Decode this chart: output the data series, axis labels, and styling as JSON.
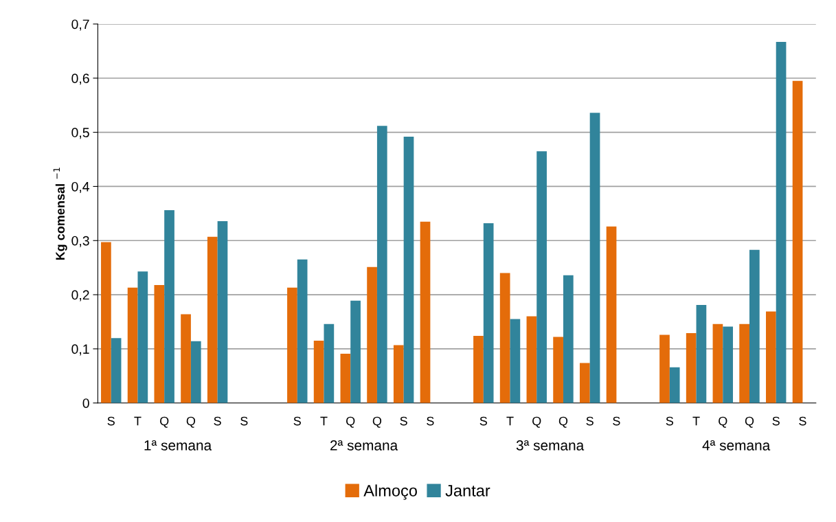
{
  "chart_data": {
    "type": "bar",
    "ylabel": "Kg comensal $^{−1}$",
    "categories": [
      "S",
      "T",
      "Q",
      "Q",
      "S",
      "S",
      null,
      "S",
      "T",
      "Q",
      "Q",
      "S",
      "S",
      null,
      "S",
      "T",
      "Q",
      "Q",
      "S",
      "S",
      null,
      "S",
      "T",
      "Q",
      "Q",
      "S",
      "S"
    ],
    "annotations": [
      "1ª semana",
      "2ª semana",
      "3ª semana",
      "4ª semana"
    ],
    "series": [
      {
        "name": "Almoço",
        "color": "#e46c0a",
        "values": [
          0.297,
          0.213,
          0.218,
          0.164,
          0.307,
          null,
          null,
          0.213,
          0.115,
          0.091,
          0.251,
          0.107,
          0.335,
          null,
          0.124,
          0.24,
          0.16,
          0.122,
          0.074,
          0.326,
          null,
          0.126,
          0.129,
          0.146,
          0.146,
          0.169,
          0.595
        ]
      },
      {
        "name": "Jantar",
        "color": "#31849b",
        "values": [
          0.12,
          0.243,
          0.356,
          0.114,
          0.336,
          null,
          null,
          0.265,
          0.146,
          0.189,
          0.512,
          0.492,
          null,
          null,
          0.332,
          0.155,
          0.465,
          0.236,
          0.536,
          null,
          null,
          0.066,
          0.181,
          0.141,
          0.283,
          0.667,
          null
        ]
      }
    ],
    "ylim": [
      0,
      0.7
    ],
    "yticks": [
      0,
      {
        "value": 0.1,
        "label": "0,1"
      },
      {
        "value": 0.2,
        "label": "0,2"
      },
      {
        "value": 0.3,
        "label": "0,3"
      },
      {
        "value": 0.4,
        "label": "0,4"
      },
      {
        "value": 0.5,
        "label": "0,5"
      },
      {
        "value": 0.6,
        "label": "0,6"
      },
      {
        "value": 0.7,
        "label": "0,7"
      }
    ],
    "grid": "y",
    "legend": "bottom"
  }
}
